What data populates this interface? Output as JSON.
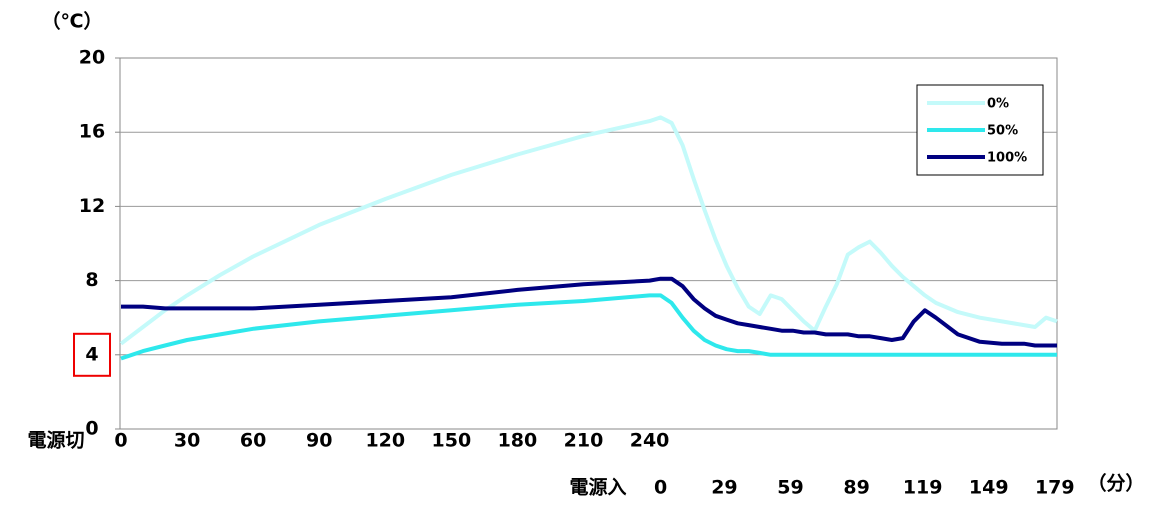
{
  "chart_data": {
    "type": "line",
    "y_label": "（℃）",
    "x_label_off": "電源切",
    "x_label_on": "電源入",
    "x_unit": "（分）",
    "x": [
      0,
      10,
      20,
      30,
      45,
      60,
      90,
      120,
      150,
      180,
      210,
      240,
      245,
      250,
      255,
      260,
      265,
      270,
      275,
      280,
      285,
      290,
      295,
      300,
      305,
      310,
      315,
      320,
      325,
      330,
      335,
      340,
      345,
      350,
      355,
      360,
      365,
      370,
      380,
      390,
      400,
      410,
      415,
      420,
      425
    ],
    "series": [
      {
        "name": "0%",
        "color": "#c4fafa",
        "values": [
          4.6,
          5.5,
          6.4,
          7.2,
          8.3,
          9.3,
          11.0,
          12.4,
          13.7,
          14.8,
          15.8,
          16.6,
          16.8,
          16.5,
          15.3,
          13.5,
          11.8,
          10.2,
          8.8,
          7.6,
          6.6,
          6.2,
          7.2,
          7.0,
          6.4,
          5.8,
          5.3,
          6.6,
          7.8,
          9.4,
          9.8,
          10.1,
          9.5,
          8.8,
          8.2,
          7.7,
          7.2,
          6.8,
          6.3,
          6.0,
          5.8,
          5.6,
          5.5,
          6.0,
          5.8
        ]
      },
      {
        "name": "50%",
        "color": "#2ee8ec",
        "values": [
          3.8,
          4.2,
          4.5,
          4.8,
          5.1,
          5.4,
          5.8,
          6.1,
          6.4,
          6.7,
          6.9,
          7.2,
          7.2,
          6.8,
          6.0,
          5.3,
          4.8,
          4.5,
          4.3,
          4.2,
          4.2,
          4.1,
          4.0,
          4.0,
          4.0,
          4.0,
          4.0,
          4.0,
          4.0,
          4.0,
          4.0,
          4.0,
          4.0,
          4.0,
          4.0,
          4.0,
          4.0,
          4.0,
          4.0,
          4.0,
          4.0,
          4.0,
          4.0,
          4.0,
          4.0
        ]
      },
      {
        "name": "100%",
        "color": "#000080",
        "values": [
          6.6,
          6.6,
          6.5,
          6.5,
          6.5,
          6.5,
          6.7,
          6.9,
          7.1,
          7.5,
          7.8,
          8.0,
          8.1,
          8.1,
          7.7,
          7.0,
          6.5,
          6.1,
          5.9,
          5.7,
          5.6,
          5.5,
          5.4,
          5.3,
          5.3,
          5.2,
          5.2,
          5.1,
          5.1,
          5.1,
          5.0,
          5.0,
          4.9,
          4.8,
          4.9,
          5.8,
          6.4,
          6.0,
          5.1,
          4.7,
          4.6,
          4.6,
          4.5,
          4.5,
          4.5
        ]
      }
    ],
    "xlim": [
      0,
      425
    ],
    "xticks": [
      0,
      30,
      60,
      90,
      120,
      150,
      180,
      210,
      240
    ],
    "xticks_on": [
      {
        "value": 245,
        "label": "0"
      },
      {
        "value": 274,
        "label": "29"
      },
      {
        "value": 304,
        "label": "59"
      },
      {
        "value": 334,
        "label": "89"
      },
      {
        "value": 364,
        "label": "119"
      },
      {
        "value": 394,
        "label": "149"
      },
      {
        "value": 424,
        "label": "179"
      }
    ],
    "ylim": [
      0,
      20
    ],
    "yticks": [
      0,
      4,
      8,
      12,
      16,
      20
    ],
    "grid": true,
    "legend": "upper right"
  }
}
